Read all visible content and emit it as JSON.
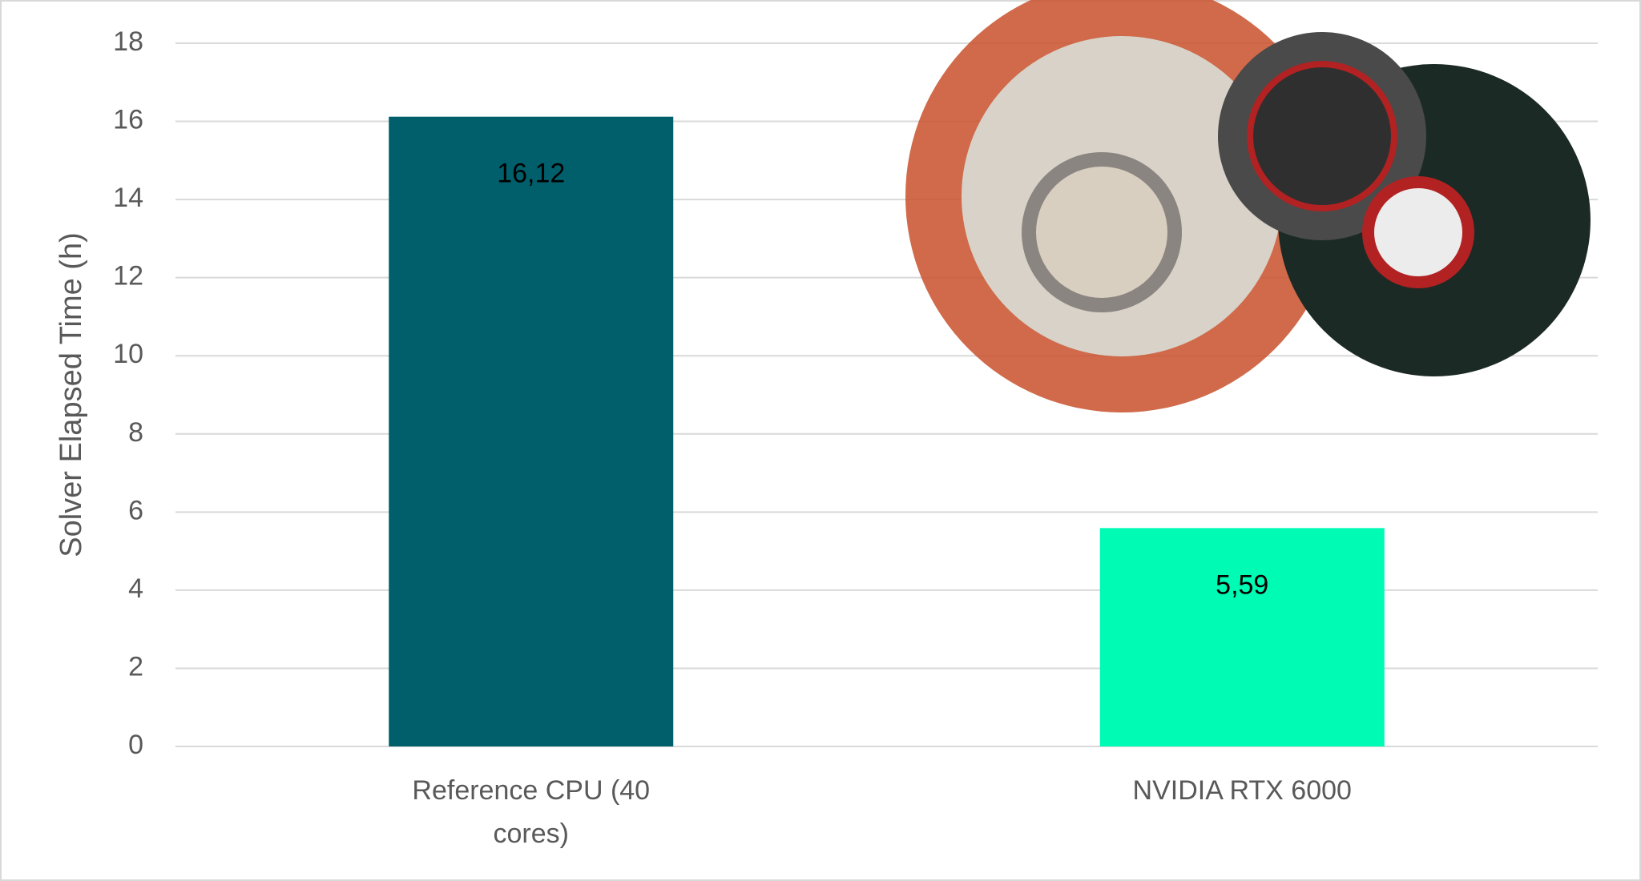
{
  "chart_data": {
    "type": "bar",
    "y_label": "Solver Elapsed Time (h)",
    "categories": [
      "Reference CPU (40 cores)",
      "NVIDIA RTX 6000"
    ],
    "values": [
      16.12,
      5.59
    ],
    "value_labels": [
      "16,12",
      "5,59"
    ],
    "colors": [
      "#005f6b",
      "#00fbb4"
    ],
    "ylim": [
      0,
      18
    ],
    "yticks": [
      0,
      2,
      4,
      6,
      8,
      10,
      12,
      14,
      16,
      18
    ],
    "grid": true
  }
}
